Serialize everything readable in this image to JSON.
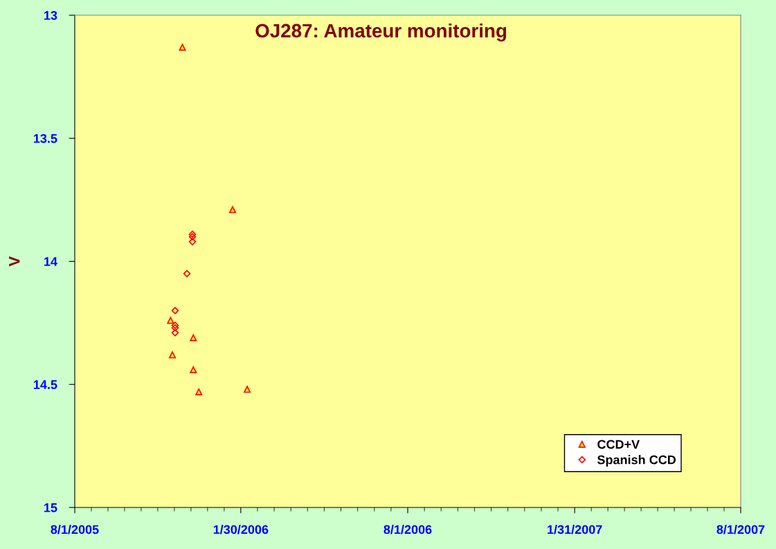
{
  "chart_data": {
    "type": "scatter",
    "title": "OJ287: Amateur monitoring",
    "ylabel": "V",
    "series": [
      {
        "name": "CCD+V",
        "color": "#ff0000",
        "marker": "triangle",
        "x": [
          "2005-11-27",
          "2006-01-21",
          "2005-11-14",
          "2005-12-09",
          "2005-11-16",
          "2005-12-09",
          "2005-12-15",
          "2006-02-06"
        ],
        "values": [
          13.13,
          13.79,
          14.24,
          14.31,
          14.38,
          14.44,
          14.53,
          14.52
        ]
      },
      {
        "name": "Spanish CCD",
        "color": "#ff0000",
        "marker": "diamond",
        "x": [
          "2005-12-08",
          "2005-12-08",
          "2005-12-08",
          "2005-12-02",
          "2005-11-19",
          "2005-11-19",
          "2005-11-19",
          "2005-11-19"
        ],
        "values": [
          13.89,
          13.9,
          13.92,
          14.05,
          14.2,
          14.26,
          14.27,
          14.29
        ]
      }
    ],
    "xlim": [
      "2005-08-01",
      "2007-08-01"
    ],
    "xticks": [
      {
        "value": "2005-08-01",
        "label": "8/1/2005"
      },
      {
        "value": "2006-01-30",
        "label": "1/30/2006"
      },
      {
        "value": "2006-08-01",
        "label": "8/1/2006"
      },
      {
        "value": "2007-01-31",
        "label": "1/31/2007"
      },
      {
        "value": "2007-08-01",
        "label": "8/1/2007"
      }
    ],
    "ylim": [
      15,
      13
    ],
    "yticks": [
      13,
      13.5,
      14,
      14.5,
      15
    ],
    "grid": false,
    "legend": "bottom right"
  }
}
